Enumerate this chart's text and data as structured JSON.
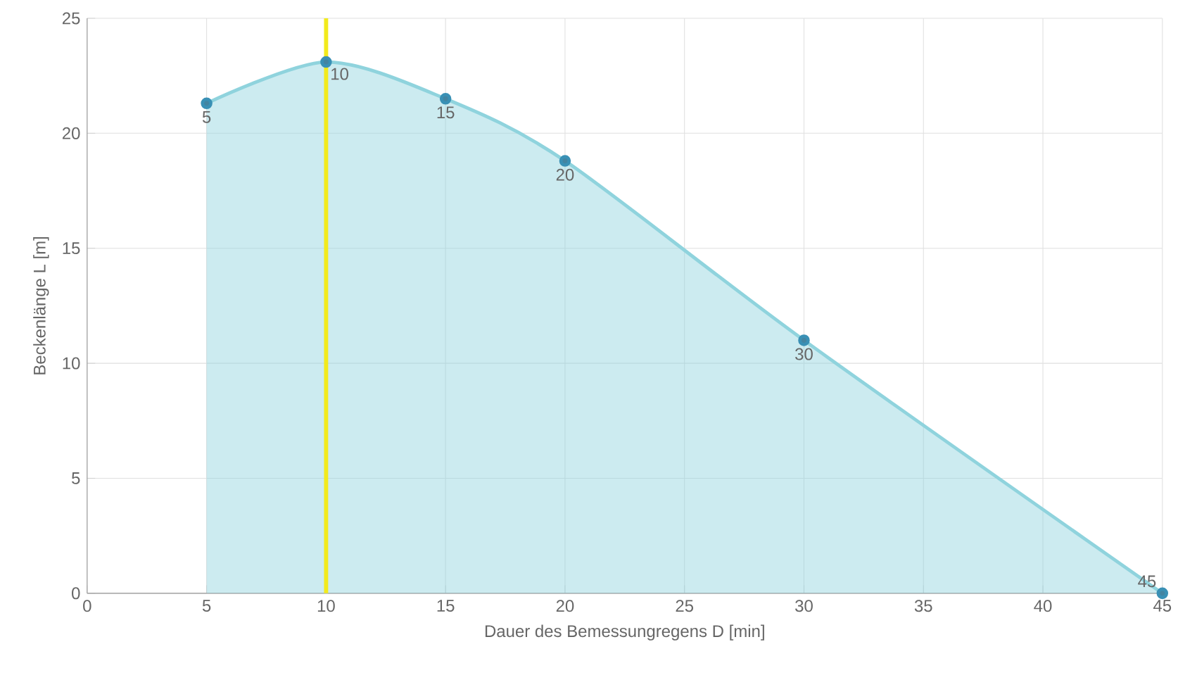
{
  "chart_data": {
    "type": "area",
    "xlabel": "Dauer des Bemessungregens D [min]",
    "ylabel": "Beckenlänge L [m]",
    "x": [
      5,
      10,
      15,
      20,
      30,
      45
    ],
    "series": [
      {
        "color": "#8fd3dd",
        "values": [
          21.3,
          23.1,
          21.5,
          18.8,
          11.0,
          0
        ]
      }
    ],
    "annotations": [
      {
        "text": "5",
        "x": 5,
        "y": 21.3
      },
      {
        "text": "10",
        "x": 10,
        "y": 23.1
      },
      {
        "text": "15",
        "x": 15,
        "y": 21.5
      },
      {
        "text": "20",
        "x": 20,
        "y": 18.8
      },
      {
        "text": "30",
        "x": 30,
        "y": 11.0
      },
      {
        "text": "45",
        "x": 45,
        "y": 0
      }
    ],
    "xlim": [
      0,
      45
    ],
    "ylim": [
      0,
      25
    ],
    "xticks": [
      0,
      5,
      10,
      15,
      20,
      25,
      30,
      35,
      40,
      45
    ],
    "yticks": [
      0,
      5,
      10,
      15,
      20,
      25
    ],
    "grid": true,
    "marker": "circle",
    "line_style": "solid",
    "ref_lines": [
      {
        "axis": "x",
        "value": 10,
        "label": null,
        "color": "#f2ea1c"
      }
    ]
  }
}
